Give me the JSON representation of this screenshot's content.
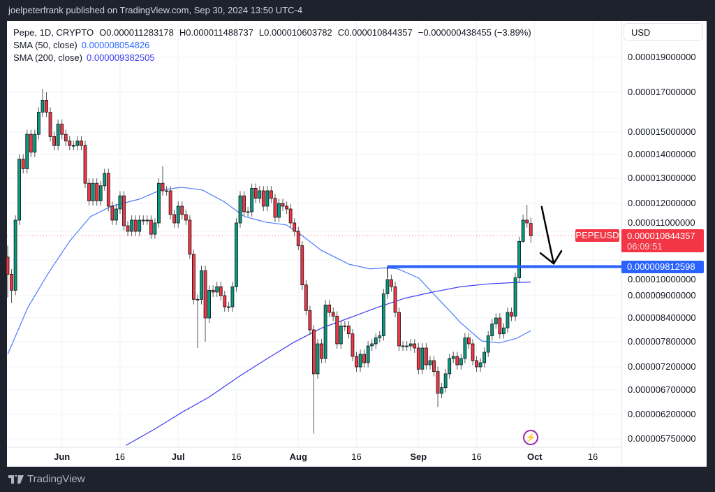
{
  "published": "joelpeterfrank published on TradingView.com, Sep 30, 2024 13:50 UTC-4",
  "legend": {
    "symbol_line": "Pepe, 1D, CRYPTO",
    "open": "O0.000011283178",
    "high": "H0.000011488737",
    "low": "L0.000010603782",
    "close": "C0.000010844357",
    "change": "−0.000000438455 (−3.89%)",
    "sma50_label": "SMA (50, close)",
    "sma50_value": "0.000008054826",
    "sma200_label": "SMA (200, close)",
    "sma200_value": "0.000009382505"
  },
  "currency_button": "USD",
  "price_tag": {
    "symbol": "PEPEUSD",
    "price": "0.000010844357",
    "countdown": "06:09:51"
  },
  "level_tag": {
    "price": "0.000009812598"
  },
  "footer": {
    "brand": "TradingView"
  },
  "colors": {
    "up": "#089981",
    "down": "#f23645",
    "sma50": "#4b7bff",
    "sma200": "#3d3df5",
    "level": "#2962ff",
    "arrow": "#000000"
  },
  "chart_data": {
    "type": "candlestick",
    "title": "Pepe, 1D, CRYPTO",
    "scale": "log",
    "y_ticks": [
      "0.000019000000",
      "0.000017000000",
      "0.000015000000",
      "0.000014000000",
      "0.000013000000",
      "0.000012000000",
      "0.000011000000",
      "0.000010000000",
      "0.000009000000",
      "0.000008400000",
      "0.000007800000",
      "0.000007200000",
      "0.000006700000",
      "0.000006200000",
      "0.000005750000"
    ],
    "x_ticks": [
      {
        "label": "Jun",
        "day": 14,
        "bold": true
      },
      {
        "label": "16",
        "day": 29,
        "bold": false
      },
      {
        "label": "Jul",
        "day": 44,
        "bold": true
      },
      {
        "label": "16",
        "day": 59,
        "bold": false
      },
      {
        "label": "Aug",
        "day": 75,
        "bold": true
      },
      {
        "label": "16",
        "day": 90,
        "bold": false
      },
      {
        "label": "Sep",
        "day": 106,
        "bold": true
      },
      {
        "label": "16",
        "day": 121,
        "bold": false
      },
      {
        "label": "Oct",
        "day": 136,
        "bold": true
      },
      {
        "label": "16",
        "day": 151,
        "bold": false
      }
    ],
    "first_date": "2024-05-18",
    "first_open": 1.01e-05,
    "close": [
      9.6e-06,
      9.15e-06,
      1.14e-05,
      1.38e-05,
      1.34e-05,
      1.49e-05,
      1.41e-05,
      1.49e-05,
      1.6e-05,
      1.66e-05,
      1.6e-05,
      1.48e-05,
      1.44e-05,
      1.54e-05,
      1.49e-05,
      1.46e-05,
      1.44e-05,
      1.44e-05,
      1.46e-05,
      1.44e-05,
      1.28e-05,
      1.21e-05,
      1.28e-05,
      1.21e-05,
      1.27e-05,
      1.32e-05,
      1.19e-05,
      1.14e-05,
      1.18e-05,
      1.23e-05,
      1.12e-05,
      1.1e-05,
      1.14e-05,
      1.1e-05,
      1.14e-05,
      1.14e-05,
      1.14e-05,
      1.09e-05,
      1.13e-05,
      1.28e-05,
      1.25e-05,
      1.25e-05,
      1.16e-05,
      1.13e-05,
      1.19e-05,
      1.16e-05,
      1.14e-05,
      1.02e-05,
      8.9e-06,
      8.9e-06,
      9.7e-06,
      8.4e-06,
      9.15e-06,
      9.1e-06,
      9.25e-06,
      9e-06,
      8.7e-06,
      8.7e-06,
      9.25e-06,
      1.13e-05,
      1.23e-05,
      1.17e-05,
      1.17e-05,
      1.26e-05,
      1.22e-05,
      1.25e-05,
      1.19e-05,
      1.25e-05,
      1.22e-05,
      1.15e-05,
      1.2e-05,
      1.19e-05,
      1.18e-05,
      1.13e-05,
      1.1e-05,
      1.05e-05,
      9.3e-06,
      8.6e-06,
      8.1e-06,
      7.05e-06,
      7.75e-06,
      7.4e-06,
      8.75e-06,
      8.55e-06,
      8.45e-06,
      7.75e-06,
      8.2e-06,
      8.2e-06,
      8e-06,
      7.45e-06,
      7.2e-06,
      7.5e-06,
      7.3e-06,
      7.7e-06,
      7.75e-06,
      7.9e-06,
      7.95e-06,
      9.05e-06,
      9.45e-06,
      9.25e-06,
      8.55e-06,
      7.7e-06,
      7.7e-06,
      7.7e-06,
      7.75e-06,
      7.65e-06,
      7.15e-06,
      7.65e-06,
      7.25e-06,
      7.35e-06,
      7.1e-06,
      6.63e-06,
      6.75e-06,
      7.05e-06,
      7.4e-06,
      7.45e-06,
      7.25e-06,
      7.4e-06,
      7.9e-06,
      7.75e-06,
      7.35e-06,
      7.2e-06,
      7.3e-06,
      7.55e-06,
      7.95e-06,
      8.25e-06,
      8.4e-06,
      8e-06,
      8.15e-06,
      8.55e-06,
      8.45e-06,
      9.5e-06,
      1.065e-05,
      1.14e-05,
      1.13e-05,
      1.0844357e-05
    ],
    "wick_extremes": [
      {
        "day": 0,
        "high": 1.05e-05,
        "low": 8.95e-06
      },
      {
        "day": 1,
        "low": 8.8e-06
      },
      {
        "day": 9,
        "high": 1.72e-05
      },
      {
        "day": 10,
        "high": 1.7e-05
      },
      {
        "day": 40,
        "high": 1.35e-05
      },
      {
        "day": 49,
        "low": 7.65e-06
      },
      {
        "day": 51,
        "low": 7.8e-06
      },
      {
        "day": 79,
        "low": 5.85e-06
      },
      {
        "day": 98,
        "high": 9.812598e-06
      },
      {
        "day": 111,
        "low": 6.35e-06
      },
      {
        "day": 133,
        "high": 1.16e-05,
        "low": 1.06e-05
      },
      {
        "day": 134,
        "high": 1.195e-05
      },
      {
        "day": 135,
        "open": 1.1283178e-05,
        "high": 1.1488737e-05,
        "low": 1.0603782e-05
      }
    ],
    "sma50": [
      [
        0,
        7.5e-06
      ],
      [
        5.2,
        8.68e-06
      ],
      [
        10.6,
        9.65e-06
      ],
      [
        16,
        1.066e-05
      ],
      [
        21.4,
        1.153e-05
      ],
      [
        26.8,
        1.19e-05
      ],
      [
        34,
        1.217e-05
      ],
      [
        39.5,
        1.253e-05
      ],
      [
        44.9,
        1.264e-05
      ],
      [
        50.3,
        1.253e-05
      ],
      [
        55.7,
        1.208e-05
      ],
      [
        61.1,
        1.153e-05
      ],
      [
        66.5,
        1.133e-05
      ],
      [
        71.9,
        1.123e-05
      ],
      [
        75.5,
        1.09e-05
      ],
      [
        80.9,
        1.034e-05
      ],
      [
        88.1,
        9.88e-06
      ],
      [
        93.5,
        9.75e-06
      ],
      [
        97.1,
        9.78e-06
      ],
      [
        100.7,
        9.75e-06
      ],
      [
        106.1,
        9.49e-06
      ],
      [
        111.5,
        8.87e-06
      ],
      [
        116.9,
        8.28e-06
      ],
      [
        122.3,
        7.82e-06
      ],
      [
        126.8,
        7.77e-06
      ],
      [
        131.4,
        7.89e-06
      ],
      [
        135,
        8.08e-06
      ]
    ],
    "sma200": [
      [
        30.5,
        5.63e-06
      ],
      [
        37.7,
        5.92e-06
      ],
      [
        44.9,
        6.24e-06
      ],
      [
        52.1,
        6.56e-06
      ],
      [
        59.3,
        6.97e-06
      ],
      [
        66.5,
        7.37e-06
      ],
      [
        73.7,
        7.78e-06
      ],
      [
        80.9,
        8.14e-06
      ],
      [
        88.1,
        8.4e-06
      ],
      [
        95.3,
        8.68e-06
      ],
      [
        102.5,
        8.93e-06
      ],
      [
        109.7,
        9.1e-06
      ],
      [
        116.9,
        9.25e-06
      ],
      [
        124.1,
        9.33e-06
      ],
      [
        131.4,
        9.37e-06
      ],
      [
        135,
        9.38e-06
      ]
    ],
    "horizontal_level": {
      "value": 9.812598e-06,
      "from_day": 98
    },
    "current_price": 1.0844357e-05,
    "arrow": {
      "from": [
        136,
        1.2e-05
      ],
      "to": [
        140,
        9.8e-06
      ]
    }
  }
}
